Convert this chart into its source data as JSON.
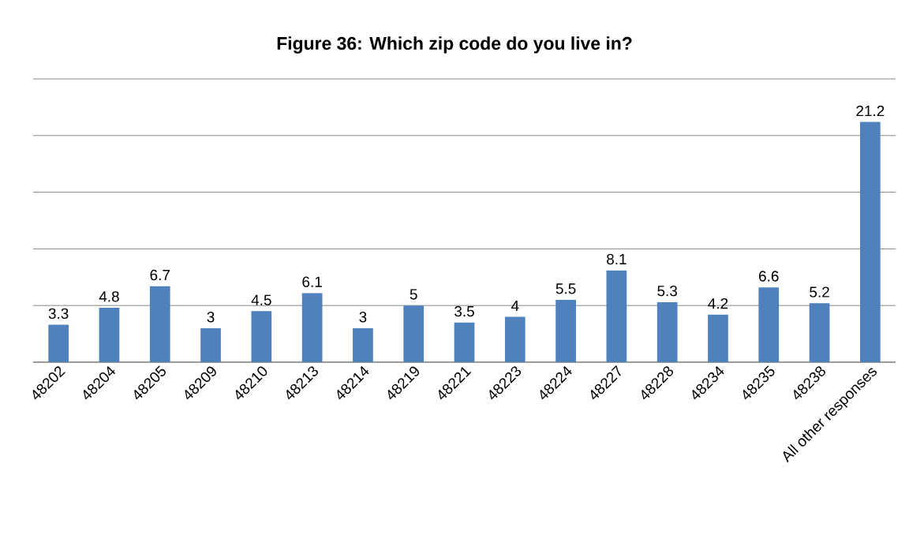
{
  "chart_data": {
    "type": "bar",
    "title": "Figure 36: Which zip code do you live in?",
    "categories": [
      "48202",
      "48204",
      "48205",
      "48209",
      "48210",
      "48213",
      "48214",
      "48219",
      "48221",
      "48223",
      "48224",
      "48227",
      "48228",
      "48234",
      "48235",
      "48238",
      "All other responses"
    ],
    "values": [
      3.3,
      4.8,
      6.7,
      3,
      4.5,
      6.1,
      3,
      5,
      3.5,
      4,
      5.5,
      8.1,
      5.3,
      4.2,
      6.6,
      5.2,
      21.2
    ],
    "color": "#4f81bd",
    "ylim": [
      0,
      25
    ],
    "yticks": [
      {
        "value": 0,
        "label": null
      },
      {
        "value": 5,
        "label": null
      },
      {
        "value": 10,
        "label": null
      },
      {
        "value": 15,
        "label": null
      },
      {
        "value": 20,
        "label": null
      },
      {
        "value": 25,
        "label": null
      }
    ],
    "grid": "y",
    "tick_labels": "x",
    "data_labels": true
  }
}
